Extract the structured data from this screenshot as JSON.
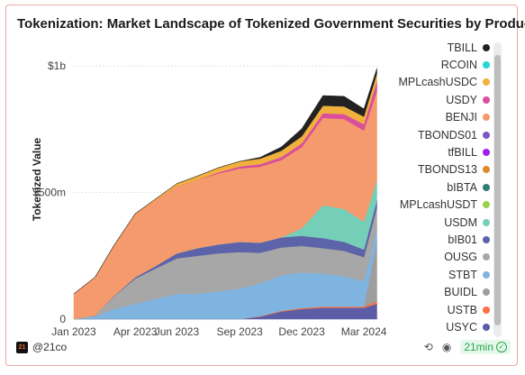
{
  "title": "Tokenization: Market Landscape of Tokenized Government Securities by Product",
  "footer": {
    "brand": "@21co",
    "brand_logo_text": "21",
    "refresh": "21min"
  },
  "chart_data": {
    "type": "area",
    "stacked": true,
    "title": "Tokenization: Market Landscape of Tokenized Government Securities by Product",
    "ylabel": "Tokenized Value",
    "xlabel": "",
    "x_ticks": [
      "Jan 2023",
      "Apr 2023",
      "Jun 2023",
      "Sep 2023",
      "Dec 2023",
      "Mar 2024"
    ],
    "y_ticks": [
      "0",
      "$500m",
      "$1b"
    ],
    "ylim": [
      0,
      1100000000
    ],
    "x_dates": [
      "2023-01-01",
      "2023-02-01",
      "2023-03-01",
      "2023-04-01",
      "2023-05-01",
      "2023-06-01",
      "2023-07-01",
      "2023-08-01",
      "2023-09-01",
      "2023-10-01",
      "2023-11-01",
      "2023-12-01",
      "2024-01-01",
      "2024-02-01",
      "2024-03-01",
      "2024-03-20"
    ],
    "legend_position": "right",
    "series": [
      {
        "name": "USYC",
        "color": "#5b5ea6",
        "values": [
          0,
          0,
          0,
          0,
          0,
          0,
          0,
          0,
          0,
          10000000,
          30000000,
          40000000,
          45000000,
          45000000,
          45000000,
          60000000
        ]
      },
      {
        "name": "USTB",
        "color": "#ff7043",
        "values": [
          0,
          0,
          0,
          0,
          0,
          0,
          0,
          0,
          0,
          2000000,
          3000000,
          4000000,
          5000000,
          5000000,
          5000000,
          10000000
        ]
      },
      {
        "name": "BUIDL",
        "color": "#9e9e9e",
        "values": [
          0,
          0,
          0,
          0,
          0,
          0,
          0,
          0,
          0,
          0,
          0,
          0,
          0,
          0,
          0,
          240000000
        ]
      },
      {
        "name": "STBT",
        "color": "#7fb3e0",
        "values": [
          0,
          10000000,
          40000000,
          60000000,
          80000000,
          100000000,
          100000000,
          110000000,
          120000000,
          130000000,
          140000000,
          140000000,
          130000000,
          120000000,
          100000000,
          40000000
        ]
      },
      {
        "name": "OUSG",
        "color": "#a7a7a7",
        "values": [
          0,
          5000000,
          50000000,
          100000000,
          120000000,
          140000000,
          150000000,
          150000000,
          145000000,
          120000000,
          110000000,
          105000000,
          100000000,
          100000000,
          95000000,
          90000000
        ]
      },
      {
        "name": "bIB01",
        "color": "#5c63a8",
        "values": [
          0,
          0,
          2000000,
          5000000,
          10000000,
          20000000,
          30000000,
          35000000,
          40000000,
          40000000,
          40000000,
          40000000,
          40000000,
          35000000,
          30000000,
          30000000
        ]
      },
      {
        "name": "USDM",
        "color": "#75cfb8",
        "values": [
          0,
          0,
          0,
          0,
          0,
          0,
          0,
          0,
          0,
          0,
          0,
          30000000,
          130000000,
          130000000,
          110000000,
          80000000
        ]
      },
      {
        "name": "MPLcashUSDT",
        "color": "#9bd24b",
        "values": [
          0,
          0,
          0,
          0,
          0,
          0,
          0,
          0,
          0,
          0,
          0,
          0,
          0,
          0,
          0,
          0
        ]
      },
      {
        "name": "bIBTA",
        "color": "#2f7d74",
        "values": [
          0,
          0,
          0,
          0,
          0,
          0,
          0,
          0,
          0,
          0,
          0,
          0,
          0,
          0,
          0,
          0
        ]
      },
      {
        "name": "TBONDS13",
        "color": "#e08a2b",
        "values": [
          0,
          0,
          0,
          0,
          0,
          0,
          0,
          0,
          0,
          0,
          0,
          0,
          0,
          0,
          0,
          0
        ]
      },
      {
        "name": "tfBILL",
        "color": "#a020f0",
        "values": [
          0,
          0,
          0,
          0,
          0,
          0,
          0,
          0,
          0,
          0,
          0,
          0,
          0,
          0,
          0,
          0
        ]
      },
      {
        "name": "TBONDS01",
        "color": "#7e57c2",
        "values": [
          0,
          0,
          0,
          0,
          0,
          0,
          0,
          0,
          0,
          0,
          0,
          0,
          0,
          0,
          0,
          0
        ]
      },
      {
        "name": "BENJI",
        "color": "#f59a6c",
        "values": [
          100000000,
          150000000,
          200000000,
          250000000,
          260000000,
          265000000,
          270000000,
          280000000,
          290000000,
          300000000,
          305000000,
          320000000,
          345000000,
          355000000,
          360000000,
          350000000
        ]
      },
      {
        "name": "USDY",
        "color": "#d94f9b",
        "values": [
          0,
          0,
          0,
          0,
          0,
          0,
          0,
          5000000,
          8000000,
          10000000,
          12000000,
          15000000,
          18000000,
          20000000,
          25000000,
          40000000
        ]
      },
      {
        "name": "MPLcashUSDC",
        "color": "#f0b03e",
        "values": [
          0,
          0,
          0,
          2000000,
          5000000,
          10000000,
          15000000,
          18000000,
          20000000,
          22000000,
          25000000,
          28000000,
          30000000,
          30000000,
          30000000,
          30000000
        ]
      },
      {
        "name": "RCOIN",
        "color": "#23d7d7",
        "values": [
          0,
          0,
          0,
          0,
          0,
          0,
          0,
          0,
          0,
          0,
          0,
          0,
          0,
          0,
          0,
          0
        ]
      },
      {
        "name": "TBILL",
        "color": "#222222",
        "values": [
          0,
          0,
          0,
          0,
          0,
          0,
          0,
          0,
          0,
          5000000,
          15000000,
          30000000,
          40000000,
          40000000,
          30000000,
          20000000
        ]
      }
    ]
  }
}
